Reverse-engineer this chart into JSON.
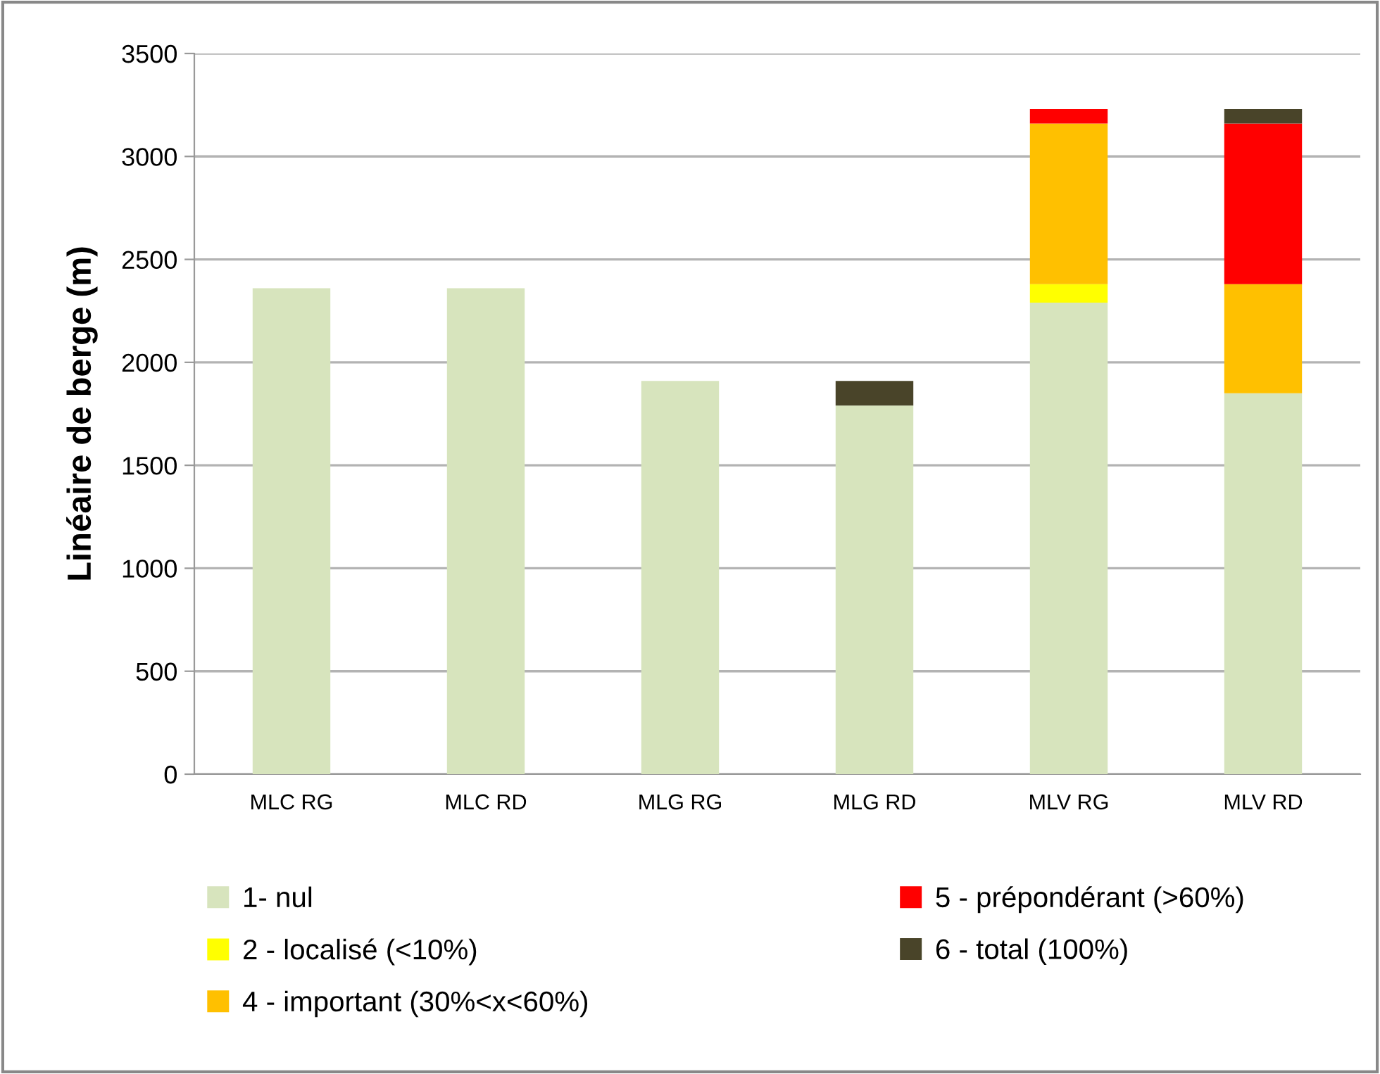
{
  "chart_data": {
    "type": "bar",
    "stacked": true,
    "ylabel": "Linéaire de berge (m)",
    "categories": [
      "MLC RG",
      "MLC RD",
      "MLG RG",
      "MLG RD",
      "MLV RG",
      "MLV RD"
    ],
    "series": [
      {
        "name": "1- nul",
        "color": "#d7e4bd",
        "values": [
          2360,
          2360,
          1910,
          1790,
          2290,
          1850
        ]
      },
      {
        "name": "2 - localisé (<10%)",
        "color": "#ffff00",
        "values": [
          0,
          0,
          0,
          0,
          90,
          0
        ]
      },
      {
        "name": "4 - important (30%<x<60%)",
        "color": "#ffc000",
        "values": [
          0,
          0,
          0,
          0,
          780,
          530
        ]
      },
      {
        "name": "5 - prépondérant (>60%)",
        "color": "#ff0000",
        "values": [
          0,
          0,
          0,
          0,
          70,
          780
        ]
      },
      {
        "name": "6 - total (100%)",
        "color": "#494429",
        "values": [
          0,
          0,
          0,
          120,
          0,
          70
        ]
      }
    ],
    "ylim": [
      0,
      3500
    ],
    "yticks": [
      0,
      500,
      1000,
      1500,
      2000,
      2500,
      3000,
      3500
    ],
    "grid": "y",
    "legend": "bottom"
  }
}
